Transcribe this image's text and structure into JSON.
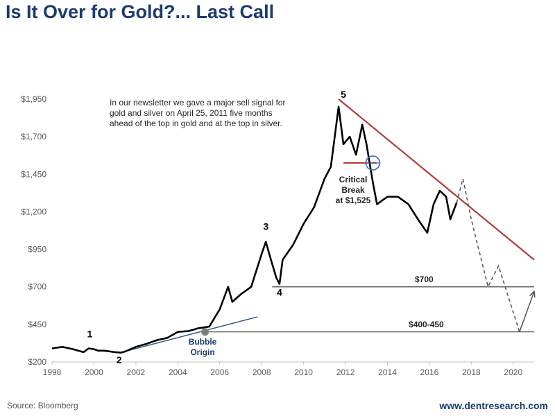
{
  "header": {
    "title": "Is It Over for Gold?... Last Call"
  },
  "footer": {
    "source": "Source: Bloomberg",
    "website": "www.dentresearch.com"
  },
  "colors": {
    "title": "#1c3c6e",
    "price_line": "#000000",
    "resistance": "#b03a3a",
    "support_trend": "#3a5f8a",
    "forecast": "#595959",
    "critical_marker": "#c0392b",
    "circle": "#4472c4"
  },
  "chart_data": {
    "type": "line",
    "title": "Is It Over for Gold?... Last Call",
    "xlabel": "",
    "ylabel": "",
    "xlim": [
      1998,
      2021
    ],
    "ylim": [
      200,
      1950
    ],
    "grid": false,
    "x_ticks": [
      "1998",
      "2000",
      "2002",
      "2004",
      "2006",
      "2008",
      "2010",
      "2012",
      "2014",
      "2016",
      "2018",
      "2020"
    ],
    "y_ticks": [
      "$200",
      "$450",
      "$700",
      "$950",
      "$1,200",
      "$1,450",
      "$1,700",
      "$1,950"
    ],
    "series": [
      {
        "role": "gold-price",
        "x": [
          1998.0,
          1998.5,
          1999.0,
          1999.5,
          1999.75,
          2000.0,
          2000.2,
          2000.5,
          2001.0,
          2001.3,
          2001.5,
          2002.0,
          2002.5,
          2003.0,
          2003.5,
          2004.0,
          2004.5,
          2005.0,
          2005.5,
          2006.0,
          2006.4,
          2006.6,
          2007.0,
          2007.5,
          2008.0,
          2008.2,
          2008.4,
          2008.7,
          2008.85,
          2009.0,
          2009.5,
          2010.0,
          2010.5,
          2011.0,
          2011.3,
          2011.67,
          2011.9,
          2012.2,
          2012.5,
          2012.8,
          2013.0,
          2013.3,
          2013.5,
          2013.8,
          2014.0,
          2014.5,
          2015.0,
          2015.5,
          2015.9,
          2016.2,
          2016.5,
          2016.8,
          2017.0,
          2017.3
        ],
        "y": [
          290,
          300,
          285,
          265,
          290,
          285,
          275,
          275,
          265,
          262,
          270,
          300,
          320,
          345,
          360,
          400,
          405,
          425,
          435,
          550,
          700,
          600,
          650,
          700,
          920,
          1000,
          900,
          760,
          720,
          880,
          980,
          1120,
          1230,
          1420,
          1500,
          1900,
          1650,
          1700,
          1580,
          1780,
          1650,
          1400,
          1250,
          1280,
          1300,
          1300,
          1250,
          1140,
          1060,
          1250,
          1340,
          1300,
          1150,
          1260
        ]
      },
      {
        "role": "forecast",
        "x": [
          2017.3,
          2017.6,
          2018.0,
          2018.8,
          2019.3,
          2020.3,
          2021.0
        ],
        "y": [
          1260,
          1420,
          1150,
          700,
          840,
          400,
          670
        ]
      }
    ],
    "lines": [
      {
        "role": "resistance",
        "x": [
          2011.67,
          2021.0
        ],
        "y": [
          1950,
          880
        ]
      },
      {
        "role": "support-trend",
        "x": [
          2001.2,
          2007.8
        ],
        "y": [
          260,
          500
        ]
      },
      {
        "role": "level",
        "label": "$700",
        "x": [
          2008.5,
          2021.0
        ],
        "y": [
          700,
          700
        ]
      },
      {
        "role": "level",
        "label": "$400-450",
        "x": [
          2005.3,
          2021.0
        ],
        "y": [
          400,
          400
        ]
      },
      {
        "role": "critical-break",
        "x": [
          2011.9,
          2013.5
        ],
        "y": [
          1525,
          1525
        ]
      }
    ],
    "points": [
      {
        "role": "bubble-origin",
        "x": 2005.3,
        "y": 400
      },
      {
        "role": "critical-break-circle",
        "x": 2013.3,
        "y": 1525
      }
    ],
    "annotations": {
      "newsletter": [
        "In our newsletter we gave a major sell signal for",
        "gold and silver on April 25, 2011 five months",
        "ahead of the top in gold and at the top in silver."
      ],
      "critical": [
        "Critical",
        "Break",
        "at $1,525"
      ],
      "bubble": [
        "Bubble",
        "Origin"
      ],
      "waves": [
        {
          "label": "1",
          "x": 1999.8,
          "y": 365
        },
        {
          "label": "2",
          "x": 2001.2,
          "y": 190
        },
        {
          "label": "3",
          "x": 2008.2,
          "y": 1080
        },
        {
          "label": "4",
          "x": 2008.85,
          "y": 640
        },
        {
          "label": "5",
          "x": 2011.9,
          "y": 1960
        }
      ],
      "levels": [
        {
          "label": "$700",
          "x": 2015.75,
          "y": 730
        },
        {
          "label": "$400-450",
          "x": 2015.85,
          "y": 430
        }
      ]
    }
  }
}
